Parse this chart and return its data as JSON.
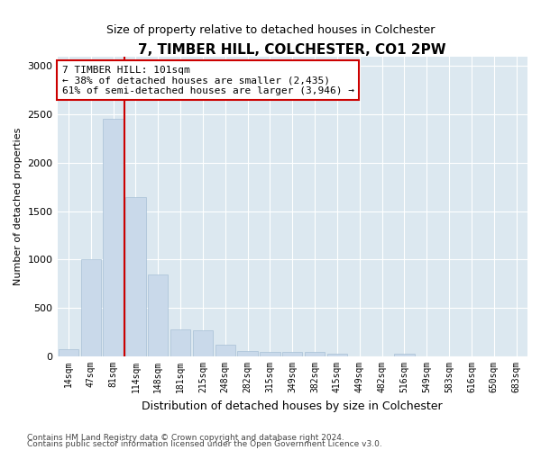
{
  "title": "7, TIMBER HILL, COLCHESTER, CO1 2PW",
  "subtitle": "Size of property relative to detached houses in Colchester",
  "xlabel": "Distribution of detached houses by size in Colchester",
  "ylabel": "Number of detached properties",
  "categories": [
    "14sqm",
    "47sqm",
    "81sqm",
    "114sqm",
    "148sqm",
    "181sqm",
    "215sqm",
    "248sqm",
    "282sqm",
    "315sqm",
    "349sqm",
    "382sqm",
    "415sqm",
    "449sqm",
    "482sqm",
    "516sqm",
    "549sqm",
    "583sqm",
    "616sqm",
    "650sqm",
    "683sqm"
  ],
  "values": [
    75,
    1000,
    2450,
    1650,
    850,
    280,
    270,
    120,
    55,
    50,
    50,
    50,
    30,
    0,
    0,
    30,
    0,
    0,
    0,
    0,
    0
  ],
  "bar_color": "#c9d9ea",
  "bar_edge_color": "#a8c0d6",
  "vline_x_pos": 2.5,
  "vline_color": "#cc0000",
  "annotation_text": "7 TIMBER HILL: 101sqm\n← 38% of detached houses are smaller (2,435)\n61% of semi-detached houses are larger (3,946) →",
  "annotation_box_color": "#ffffff",
  "annotation_box_edge": "#cc0000",
  "ylim": [
    0,
    3100
  ],
  "yticks": [
    0,
    500,
    1000,
    1500,
    2000,
    2500,
    3000
  ],
  "footer1": "Contains HM Land Registry data © Crown copyright and database right 2024.",
  "footer2": "Contains public sector information licensed under the Open Government Licence v3.0.",
  "fig_bg_color": "#ffffff",
  "plot_bg_color": "#dce8f0"
}
